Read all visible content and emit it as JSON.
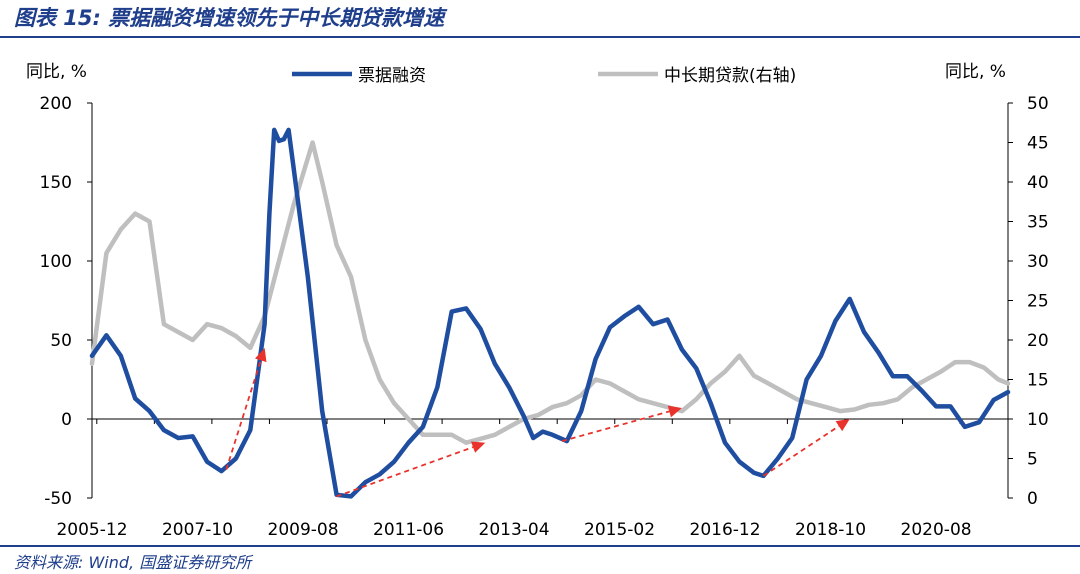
{
  "title": "图表 15: 票据融资增速领先于中长期贷款增速",
  "source": "资料来源: Wind, 国盛证券研究所",
  "colors": {
    "bill": "#1f4ea1",
    "loan": "#bfbfbf",
    "arrow": "#e8322b",
    "frame": "#1f3f8c"
  },
  "chart_data": {
    "type": "line",
    "ylabel_left": "同比, %",
    "ylabel_right": "同比, %",
    "ylim_left": [
      -50,
      200
    ],
    "ylim_right": [
      0,
      50
    ],
    "yticks_left": [
      "200",
      "150",
      "100",
      "50",
      "0",
      "-50"
    ],
    "yticks_right": [
      "50",
      "45",
      "40",
      "35",
      "30",
      "25",
      "20",
      "15",
      "10",
      "5",
      "0"
    ],
    "xtick_labels": [
      "2005-12",
      "2007-10",
      "2009-08",
      "2011-06",
      "2013-04",
      "2015-02",
      "2016-12",
      "2018-10",
      "2020-08"
    ],
    "legend_position": "top",
    "series": [
      {
        "name": "票据融资",
        "axis": "left",
        "points": [
          [
            "2005-12",
            40
          ],
          [
            "2006-03",
            53
          ],
          [
            "2006-06",
            40
          ],
          [
            "2006-09",
            13
          ],
          [
            "2006-12",
            5
          ],
          [
            "2007-03",
            -7
          ],
          [
            "2007-06",
            -12
          ],
          [
            "2007-09",
            -11
          ],
          [
            "2007-12",
            -27
          ],
          [
            "2008-03",
            -33
          ],
          [
            "2008-06",
            -25
          ],
          [
            "2008-09",
            -7
          ],
          [
            "2008-12",
            60
          ],
          [
            "2009-01",
            130
          ],
          [
            "2009-02",
            183
          ],
          [
            "2009-03",
            176
          ],
          [
            "2009-04",
            177
          ],
          [
            "2009-05",
            183
          ],
          [
            "2009-06",
            160
          ],
          [
            "2009-09",
            90
          ],
          [
            "2009-12",
            5
          ],
          [
            "2010-03",
            -48
          ],
          [
            "2010-06",
            -49
          ],
          [
            "2010-09",
            -40
          ],
          [
            "2010-12",
            -35
          ],
          [
            "2011-03",
            -27
          ],
          [
            "2011-06",
            -15
          ],
          [
            "2011-09",
            -5
          ],
          [
            "2011-12",
            20
          ],
          [
            "2012-03",
            68
          ],
          [
            "2012-06",
            70
          ],
          [
            "2012-09",
            57
          ],
          [
            "2012-12",
            35
          ],
          [
            "2013-03",
            20
          ],
          [
            "2013-06",
            2
          ],
          [
            "2013-08",
            -12
          ],
          [
            "2013-10",
            -8
          ],
          [
            "2013-12",
            -10
          ],
          [
            "2014-03",
            -14
          ],
          [
            "2014-06",
            5
          ],
          [
            "2014-09",
            38
          ],
          [
            "2014-12",
            58
          ],
          [
            "2015-03",
            65
          ],
          [
            "2015-06",
            71
          ],
          [
            "2015-09",
            60
          ],
          [
            "2015-12",
            63
          ],
          [
            "2016-03",
            44
          ],
          [
            "2016-06",
            32
          ],
          [
            "2016-09",
            10
          ],
          [
            "2016-12",
            -15
          ],
          [
            "2017-03",
            -27
          ],
          [
            "2017-06",
            -34
          ],
          [
            "2017-08",
            -36
          ],
          [
            "2017-11",
            -25
          ],
          [
            "2018-02",
            -12
          ],
          [
            "2018-05",
            25
          ],
          [
            "2018-08",
            40
          ],
          [
            "2018-11",
            62
          ],
          [
            "2019-02",
            76
          ],
          [
            "2019-05",
            55
          ],
          [
            "2019-08",
            42
          ],
          [
            "2019-11",
            27
          ],
          [
            "2020-02",
            27
          ],
          [
            "2020-05",
            18
          ],
          [
            "2020-08",
            8
          ],
          [
            "2020-11",
            8
          ],
          [
            "2021-02",
            -5
          ],
          [
            "2021-05",
            -2
          ],
          [
            "2021-08",
            12
          ],
          [
            "2021-11",
            17
          ]
        ]
      },
      {
        "name": "中长期贷款(右轴)",
        "axis": "right",
        "points": [
          [
            "2005-12",
            17
          ],
          [
            "2006-03",
            31
          ],
          [
            "2006-06",
            34
          ],
          [
            "2006-09",
            36
          ],
          [
            "2006-12",
            35
          ],
          [
            "2007-03",
            22
          ],
          [
            "2007-06",
            21
          ],
          [
            "2007-09",
            20
          ],
          [
            "2007-12",
            22
          ],
          [
            "2008-03",
            21.5
          ],
          [
            "2008-06",
            20.5
          ],
          [
            "2008-09",
            19
          ],
          [
            "2008-12",
            23
          ],
          [
            "2009-03",
            30
          ],
          [
            "2009-06",
            37
          ],
          [
            "2009-09",
            43
          ],
          [
            "2009-10",
            45
          ],
          [
            "2009-12",
            40
          ],
          [
            "2010-03",
            32
          ],
          [
            "2010-06",
            28
          ],
          [
            "2010-09",
            20
          ],
          [
            "2010-12",
            15
          ],
          [
            "2011-03",
            12
          ],
          [
            "2011-06",
            10
          ],
          [
            "2011-09",
            8
          ],
          [
            "2011-12",
            8
          ],
          [
            "2012-03",
            8
          ],
          [
            "2012-06",
            7
          ],
          [
            "2012-09",
            7.5
          ],
          [
            "2012-12",
            8
          ],
          [
            "2013-03",
            9
          ],
          [
            "2013-06",
            10
          ],
          [
            "2013-09",
            10.5
          ],
          [
            "2013-12",
            11.5
          ],
          [
            "2014-03",
            12
          ],
          [
            "2014-06",
            13
          ],
          [
            "2014-09",
            15
          ],
          [
            "2014-12",
            14.5
          ],
          [
            "2015-03",
            13.5
          ],
          [
            "2015-06",
            12.5
          ],
          [
            "2015-09",
            12
          ],
          [
            "2015-12",
            11.5
          ],
          [
            "2016-03",
            11
          ],
          [
            "2016-06",
            12.5
          ],
          [
            "2016-09",
            14.5
          ],
          [
            "2016-12",
            16
          ],
          [
            "2017-03",
            18
          ],
          [
            "2017-06",
            15.5
          ],
          [
            "2017-09",
            14.5
          ],
          [
            "2017-12",
            13.5
          ],
          [
            "2018-03",
            12.5
          ],
          [
            "2018-06",
            12
          ],
          [
            "2018-09",
            11.5
          ],
          [
            "2018-12",
            11
          ],
          [
            "2019-03",
            11.2
          ],
          [
            "2019-06",
            11.8
          ],
          [
            "2019-09",
            12
          ],
          [
            "2019-12",
            12.5
          ],
          [
            "2020-03",
            14
          ],
          [
            "2020-06",
            15
          ],
          [
            "2020-09",
            16
          ],
          [
            "2020-12",
            17.2
          ],
          [
            "2021-03",
            17.2
          ],
          [
            "2021-06",
            16.5
          ],
          [
            "2021-09",
            15
          ],
          [
            "2021-11",
            14.5
          ]
        ]
      }
    ],
    "lead_arrows": [
      {
        "from": [
          "2008-04",
          -32
        ],
        "to": [
          "2008-12",
          45
        ]
      },
      {
        "from": [
          "2010-03",
          -49
        ],
        "to": [
          "2012-10",
          -15
        ]
      },
      {
        "from": [
          "2014-02",
          -14
        ],
        "to": [
          "2016-03",
          7
        ]
      },
      {
        "from": [
          "2017-08",
          -36
        ],
        "to": [
          "2019-02",
          0
        ]
      }
    ]
  }
}
